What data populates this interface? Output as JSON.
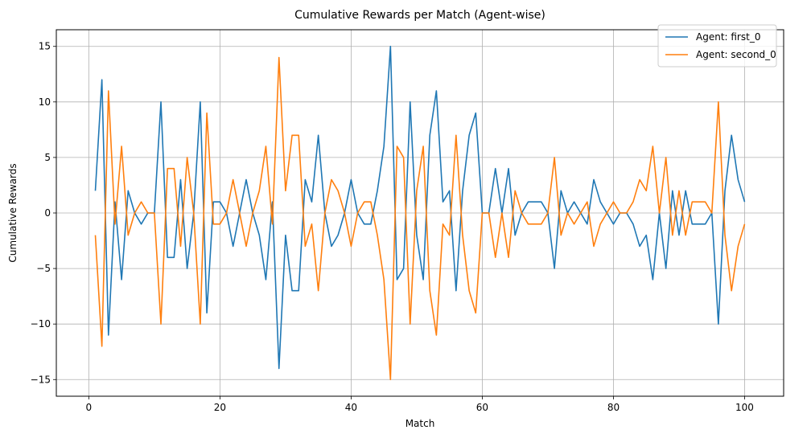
{
  "chart_data": {
    "type": "line",
    "title": "Cumulative Rewards per Match (Agent-wise)",
    "xlabel": "Match",
    "ylabel": "Cumulative Rewards",
    "xlim": [
      -4.95,
      105.95
    ],
    "ylim": [
      -16.5,
      16.5
    ],
    "xticks": [
      0,
      20,
      40,
      60,
      80,
      100
    ],
    "yticks": [
      -15,
      -10,
      -5,
      0,
      5,
      10,
      15
    ],
    "xtick_labels": [
      "0",
      "20",
      "40",
      "60",
      "80",
      "100"
    ],
    "ytick_labels": [
      "−15",
      "−10",
      "−5",
      "0",
      "5",
      "10",
      "15"
    ],
    "grid": true,
    "legend_position": "top-right",
    "x": [
      1,
      2,
      3,
      4,
      5,
      6,
      7,
      8,
      9,
      10,
      11,
      12,
      13,
      14,
      15,
      16,
      17,
      18,
      19,
      20,
      21,
      22,
      23,
      24,
      25,
      26,
      27,
      28,
      29,
      30,
      31,
      32,
      33,
      34,
      35,
      36,
      37,
      38,
      39,
      40,
      41,
      42,
      43,
      44,
      45,
      46,
      47,
      48,
      49,
      50,
      51,
      52,
      53,
      54,
      55,
      56,
      57,
      58,
      59,
      60,
      61,
      62,
      63,
      64,
      65,
      66,
      67,
      68,
      69,
      70,
      71,
      72,
      73,
      74,
      75,
      76,
      77,
      78,
      79,
      80,
      81,
      82,
      83,
      84,
      85,
      86,
      87,
      88,
      89,
      90,
      91,
      92,
      93,
      94,
      95,
      96,
      97,
      98,
      99,
      100
    ],
    "series": [
      {
        "name": "Agent: first_0",
        "color": "#1f77b4",
        "values": [
          2,
          12,
          -11,
          1,
          -6,
          2,
          0,
          -1,
          0,
          0,
          10,
          -4,
          -4,
          3,
          -5,
          0,
          10,
          -9,
          1,
          1,
          0,
          -3,
          0,
          3,
          0,
          -2,
          -6,
          1,
          -14,
          -2,
          -7,
          -7,
          3,
          1,
          7,
          0,
          -3,
          -2,
          0,
          3,
          0,
          -1,
          -1,
          2,
          6,
          15,
          -6,
          -5,
          10,
          -2,
          -6,
          7,
          11,
          1,
          2,
          -7,
          2,
          7,
          9,
          0,
          0,
          4,
          0,
          4,
          -2,
          0,
          1,
          1,
          1,
          0,
          -5,
          2,
          0,
          1,
          0,
          -1,
          3,
          1,
          0,
          -1,
          0,
          0,
          -1,
          -3,
          -2,
          -6,
          0,
          -5,
          2,
          -2,
          2,
          -1,
          -1,
          -1,
          0,
          -10,
          2,
          7,
          3,
          1
        ]
      },
      {
        "name": "Agent: second_0",
        "color": "#ff7f0e",
        "values": [
          -2,
          -12,
          11,
          -1,
          6,
          -2,
          0,
          1,
          0,
          0,
          -10,
          4,
          4,
          -3,
          5,
          0,
          -10,
          9,
          -1,
          -1,
          0,
          3,
          0,
          -3,
          0,
          2,
          6,
          -1,
          14,
          2,
          7,
          7,
          -3,
          -1,
          -7,
          0,
          3,
          2,
          0,
          -3,
          0,
          1,
          1,
          -2,
          -6,
          -15,
          6,
          5,
          -10,
          2,
          6,
          -7,
          -11,
          -1,
          -2,
          7,
          -2,
          -7,
          -9,
          0,
          0,
          -4,
          0,
          -4,
          2,
          0,
          -1,
          -1,
          -1,
          0,
          5,
          -2,
          0,
          -1,
          0,
          1,
          -3,
          -1,
          0,
          1,
          0,
          0,
          1,
          3,
          2,
          6,
          0,
          5,
          -2,
          2,
          -2,
          1,
          1,
          1,
          0,
          10,
          -2,
          -7,
          -3,
          -1
        ]
      }
    ]
  }
}
